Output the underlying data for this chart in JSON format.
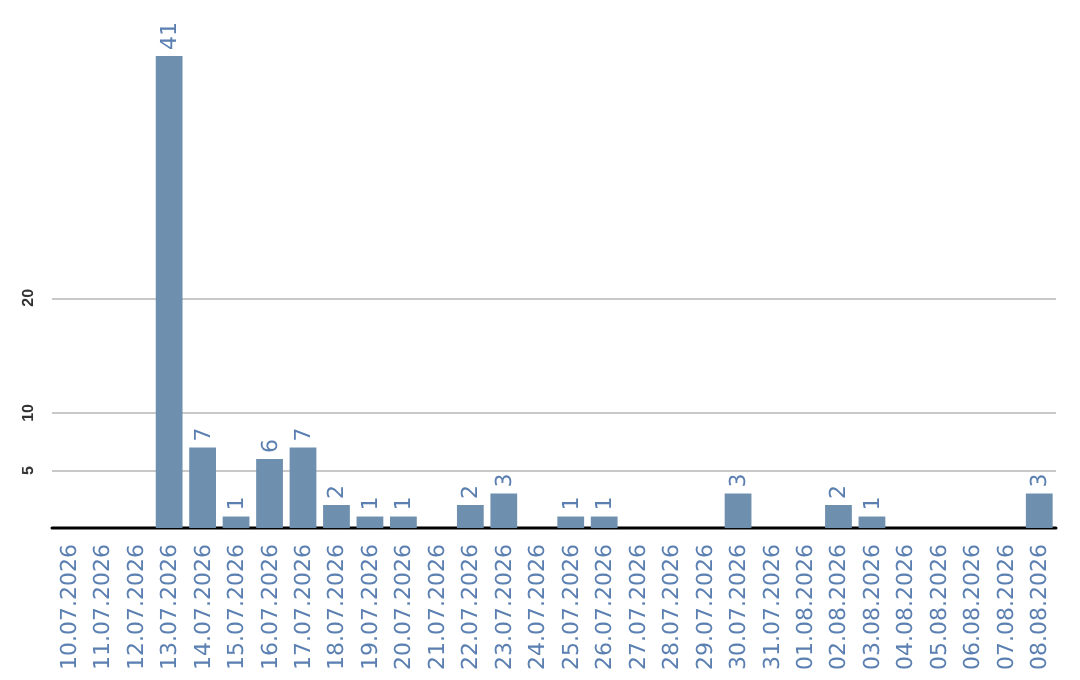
{
  "chart_data": {
    "type": "bar",
    "categories": [
      "10.07.2026",
      "11.07.2026",
      "12.07.2026",
      "13.07.2026",
      "14.07.2026",
      "15.07.2026",
      "16.07.2026",
      "17.07.2026",
      "18.07.2026",
      "19.07.2026",
      "20.07.2026",
      "21.07.2026",
      "22.07.2026",
      "23.07.2026",
      "24.07.2026",
      "25.07.2026",
      "26.07.2026",
      "27.07.2026",
      "28.07.2026",
      "29.07.2026",
      "30.07.2026",
      "31.07.2026",
      "01.08.2026",
      "02.08.2026",
      "03.08.2026",
      "04.08.2026",
      "05.08.2026",
      "06.08.2026",
      "07.08.2026",
      "08.08.2026"
    ],
    "values": [
      0,
      0,
      0,
      41,
      7,
      1,
      6,
      7,
      2,
      1,
      1,
      0,
      2,
      3,
      0,
      1,
      1,
      0,
      0,
      0,
      3,
      0,
      0,
      2,
      1,
      0,
      0,
      0,
      0,
      3
    ],
    "value_labels": [
      null,
      null,
      null,
      "41",
      "7",
      "1",
      "6",
      "7",
      "2",
      "1",
      "1",
      null,
      "2",
      "3",
      null,
      "1",
      "1",
      null,
      null,
      null,
      "3",
      null,
      null,
      "2",
      "1",
      null,
      null,
      null,
      null,
      "3"
    ],
    "color": "#6f8faf",
    "ylim": [
      0,
      41
    ],
    "yticks": [
      5,
      10,
      20
    ],
    "grid": "y"
  }
}
